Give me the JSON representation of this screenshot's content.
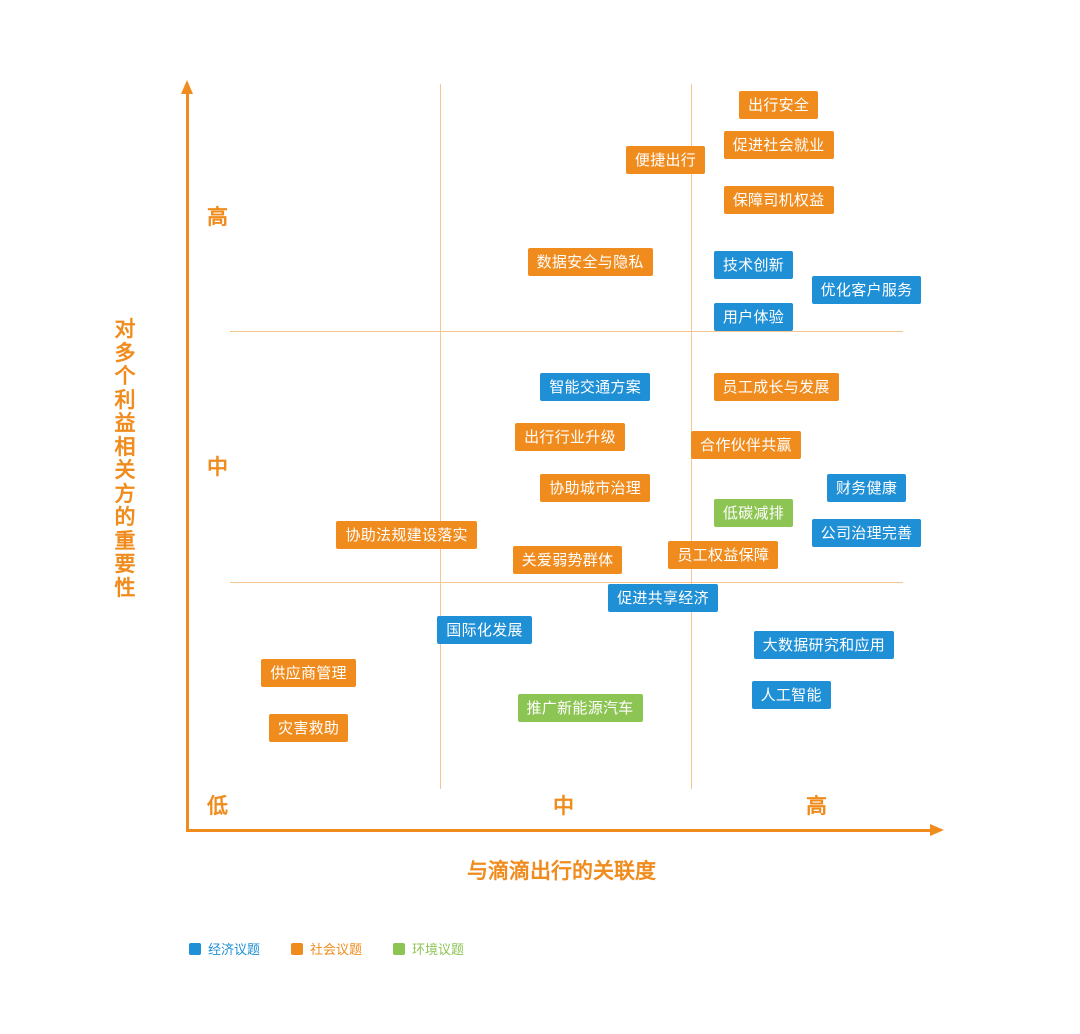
{
  "colors": {
    "economic": "#1f8fd6",
    "social": "#f08c1e",
    "environment": "#8dc554"
  },
  "axes": {
    "x_title": "与滴滴出行的关联度",
    "y_title": "对多个利益相关方的重要性",
    "x_levels": [
      "低",
      "中",
      "高"
    ],
    "y_levels": [
      "高",
      "中"
    ]
  },
  "legend": [
    {
      "label": "经济议题",
      "category": "economic"
    },
    {
      "label": "社会议题",
      "category": "social"
    },
    {
      "label": "环境议题",
      "category": "environment"
    }
  ],
  "chart_data": {
    "type": "scatter",
    "xlabel": "与滴滴出行的关联度",
    "ylabel": "对多个利益相关方的重要性",
    "categories": [
      "低",
      "中",
      "高"
    ],
    "points": [
      {
        "label": "出行安全",
        "category": "social",
        "x": 2.35,
        "y": 2.91
      },
      {
        "label": "促进社会就业",
        "category": "social",
        "x": 2.35,
        "y": 2.75
      },
      {
        "label": "便捷出行",
        "category": "social",
        "x": 1.9,
        "y": 2.69
      },
      {
        "label": "保障司机权益",
        "category": "social",
        "x": 2.35,
        "y": 2.53
      },
      {
        "label": "数据安全与隐私",
        "category": "social",
        "x": 1.6,
        "y": 2.28
      },
      {
        "label": "技术创新",
        "category": "economic",
        "x": 2.25,
        "y": 2.27
      },
      {
        "label": "优化客户服务",
        "category": "economic",
        "x": 2.7,
        "y": 2.17
      },
      {
        "label": "用户体验",
        "category": "economic",
        "x": 2.25,
        "y": 2.06
      },
      {
        "label": "智能交通方案",
        "category": "economic",
        "x": 1.62,
        "y": 1.78
      },
      {
        "label": "员工成长与发展",
        "category": "social",
        "x": 2.34,
        "y": 1.78
      },
      {
        "label": "出行行业升级",
        "category": "social",
        "x": 1.52,
        "y": 1.58
      },
      {
        "label": "合作伙伴共赢",
        "category": "social",
        "x": 2.22,
        "y": 1.55
      },
      {
        "label": "财务健康",
        "category": "economic",
        "x": 2.7,
        "y": 1.38
      },
      {
        "label": "协助城市治理",
        "category": "social",
        "x": 1.62,
        "y": 1.38
      },
      {
        "label": "低碳减排",
        "category": "environment",
        "x": 2.25,
        "y": 1.28
      },
      {
        "label": "公司治理完善",
        "category": "economic",
        "x": 2.7,
        "y": 1.2
      },
      {
        "label": "协助法规建设落实",
        "category": "social",
        "x": 0.87,
        "y": 1.19
      },
      {
        "label": "关爱弱势群体",
        "category": "social",
        "x": 1.51,
        "y": 1.09
      },
      {
        "label": "员工权益保障",
        "category": "social",
        "x": 2.13,
        "y": 1.11
      },
      {
        "label": "促进共享经济",
        "category": "economic",
        "x": 1.89,
        "y": 0.94
      },
      {
        "label": "国际化发展",
        "category": "economic",
        "x": 1.18,
        "y": 0.81
      },
      {
        "label": "大数据研究和应用",
        "category": "economic",
        "x": 2.53,
        "y": 0.75
      },
      {
        "label": "供应商管理",
        "category": "social",
        "x": 0.48,
        "y": 0.64
      },
      {
        "label": "人工智能",
        "category": "economic",
        "x": 2.4,
        "y": 0.55
      },
      {
        "label": "推广新能源汽车",
        "category": "environment",
        "x": 1.56,
        "y": 0.5
      },
      {
        "label": "灾害救助",
        "category": "social",
        "x": 0.48,
        "y": 0.42
      }
    ]
  }
}
